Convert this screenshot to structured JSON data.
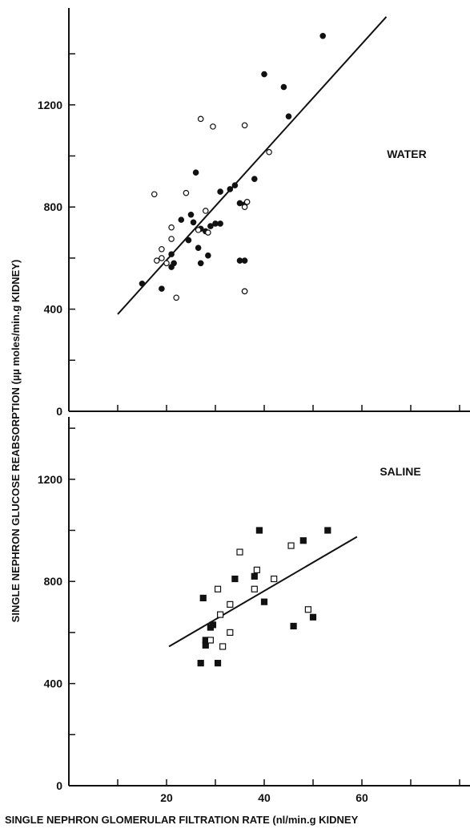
{
  "ylabel": "SINGLE NEPHRON GLUCOSE REABSORPTION (µµ moles/min.g KIDNEY)",
  "xlabel": "SINGLE NEPHRON GLOMERULAR FILTRATION RATE (nl/min.g KIDNEY",
  "chart_data": [
    {
      "type": "scatter",
      "title": "WATER",
      "xlim": [
        0,
        80
      ],
      "ylim": [
        0,
        1500
      ],
      "x_ticks": [
        20,
        40,
        60
      ],
      "y_ticks": [
        0,
        400,
        800,
        1200
      ],
      "marker_shape": "circle",
      "series": [
        {
          "marker": "filled",
          "points": [
            [
              15,
              500
            ],
            [
              19,
              480
            ],
            [
              21,
              565
            ],
            [
              21,
              615
            ],
            [
              21.5,
              580
            ],
            [
              23,
              750
            ],
            [
              24.5,
              670
            ],
            [
              25,
              770
            ],
            [
              25.5,
              740
            ],
            [
              26,
              935
            ],
            [
              26.5,
              640
            ],
            [
              27,
              715
            ],
            [
              27,
              580
            ],
            [
              28,
              705
            ],
            [
              28.5,
              610
            ],
            [
              29,
              725
            ],
            [
              30,
              735
            ],
            [
              31,
              735
            ],
            [
              31,
              860
            ],
            [
              33,
              870
            ],
            [
              34,
              885
            ],
            [
              35,
              590
            ],
            [
              35,
              815
            ],
            [
              36,
              590
            ],
            [
              36,
              810
            ],
            [
              36,
              470
            ],
            [
              38,
              910
            ],
            [
              40,
              1320
            ],
            [
              44,
              1270
            ],
            [
              45,
              1155
            ],
            [
              52,
              1470
            ]
          ]
        },
        {
          "marker": "open",
          "points": [
            [
              17.5,
              850
            ],
            [
              18,
              590
            ],
            [
              19,
              600
            ],
            [
              19,
              635
            ],
            [
              20,
              580
            ],
            [
              21,
              720
            ],
            [
              21,
              675
            ],
            [
              22,
              445
            ],
            [
              24,
              855
            ],
            [
              26.5,
              710
            ],
            [
              27,
              1145
            ],
            [
              28,
              785
            ],
            [
              28.5,
              700
            ],
            [
              29.5,
              1115
            ],
            [
              36,
              1120
            ],
            [
              36,
              800
            ],
            [
              36.5,
              820
            ],
            [
              36,
              470
            ],
            [
              41,
              1015
            ]
          ]
        }
      ],
      "fit_line": [
        [
          10,
          380
        ],
        [
          65,
          1545
        ]
      ]
    },
    {
      "type": "scatter",
      "title": "SALINE",
      "xlim": [
        0,
        80
      ],
      "ylim": [
        0,
        1500
      ],
      "x_ticks": [
        20,
        40,
        60
      ],
      "y_ticks": [
        0,
        400,
        800,
        1200
      ],
      "marker_shape": "square",
      "series": [
        {
          "marker": "filled",
          "points": [
            [
              27,
              480
            ],
            [
              27.5,
              735
            ],
            [
              28,
              550
            ],
            [
              28,
              570
            ],
            [
              29,
              620
            ],
            [
              29.5,
              630
            ],
            [
              30.5,
              480
            ],
            [
              34,
              810
            ],
            [
              38,
              820
            ],
            [
              39,
              1000
            ],
            [
              40,
              720
            ],
            [
              46,
              625
            ],
            [
              48,
              960
            ],
            [
              50,
              660
            ],
            [
              53,
              1000
            ]
          ]
        },
        {
          "marker": "open",
          "points": [
            [
              29,
              570
            ],
            [
              30.5,
              770
            ],
            [
              31,
              670
            ],
            [
              31.5,
              545
            ],
            [
              33,
              600
            ],
            [
              33,
              710
            ],
            [
              35,
              915
            ],
            [
              38,
              770
            ],
            [
              38.5,
              845
            ],
            [
              42,
              810
            ],
            [
              45.5,
              940
            ],
            [
              49,
              690
            ]
          ]
        }
      ],
      "fit_line": [
        [
          20.5,
          545
        ],
        [
          59,
          975
        ]
      ]
    }
  ]
}
